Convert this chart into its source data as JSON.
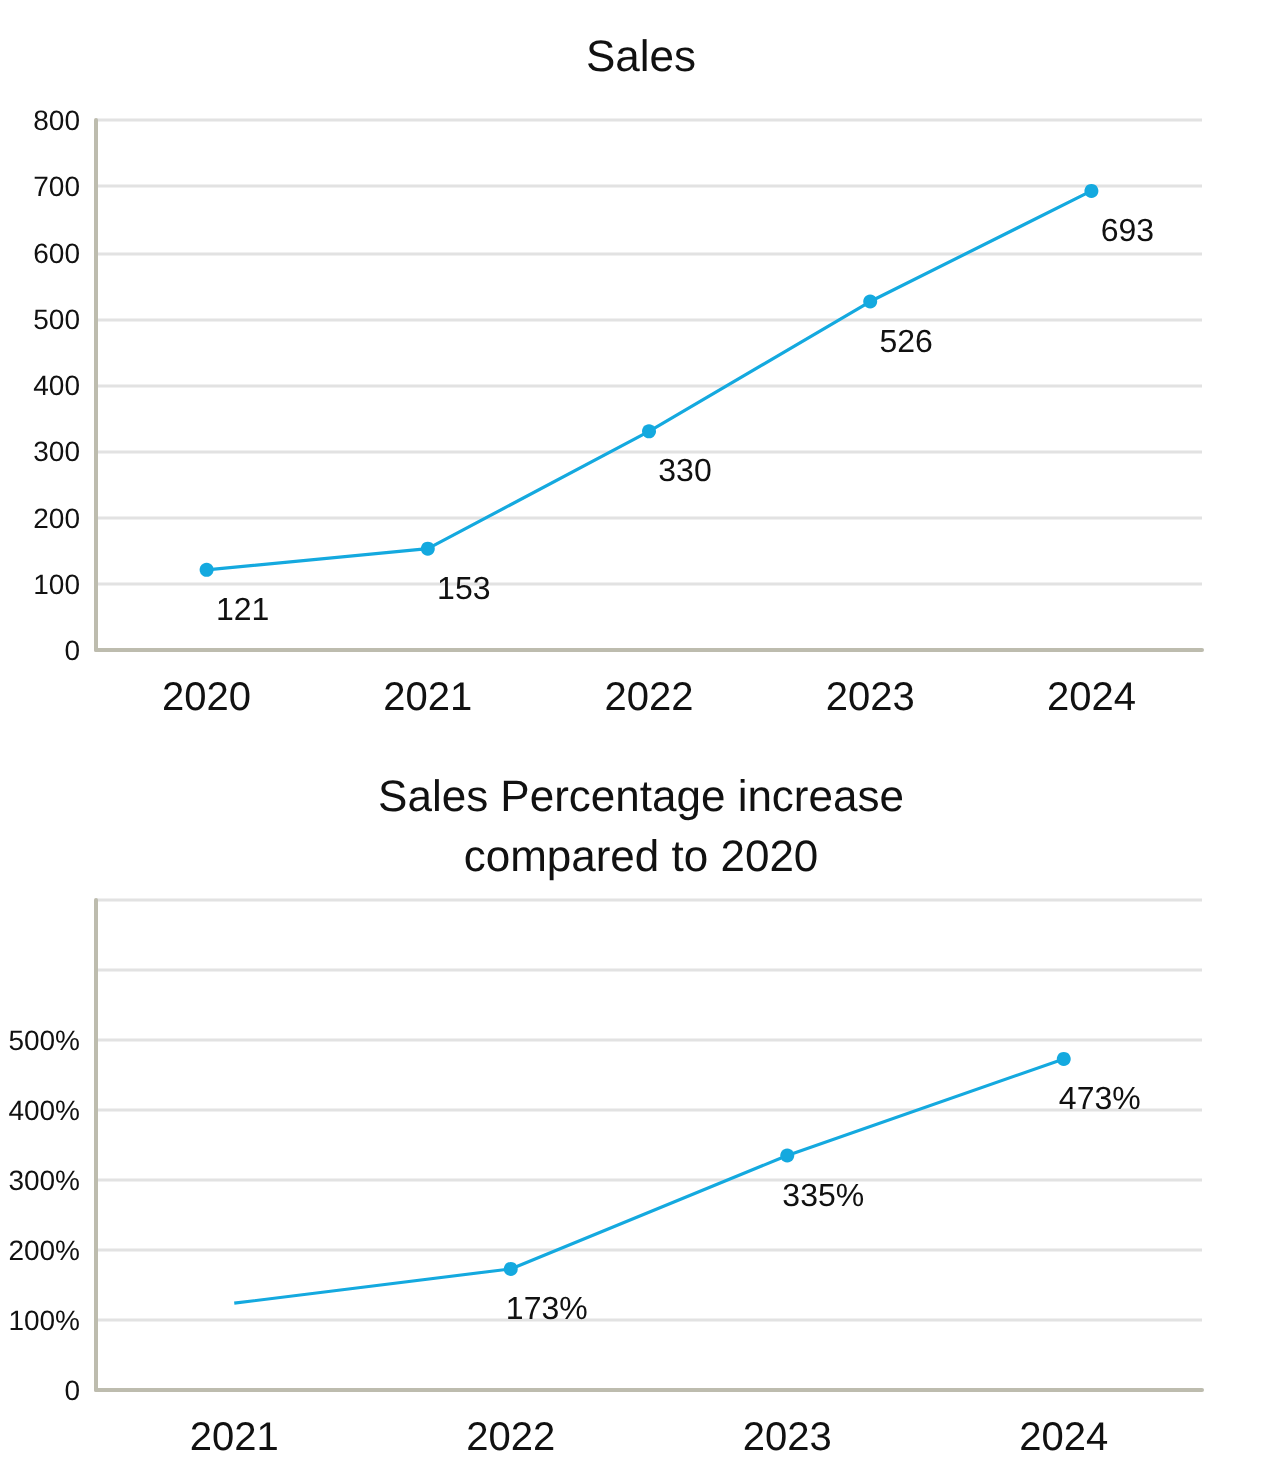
{
  "chart_data": [
    {
      "type": "line",
      "title": "Sales",
      "categories": [
        "2020",
        "2021",
        "2022",
        "2023",
        "2024"
      ],
      "series": [
        {
          "color": "#14a9df",
          "values": [
            121,
            153,
            330,
            526,
            693
          ]
        }
      ],
      "ylim": [
        0,
        800
      ],
      "yticks": [
        0,
        100,
        200,
        300,
        400,
        500,
        600,
        700,
        800
      ],
      "grid": "y",
      "marker": "circle",
      "data_labels": true
    },
    {
      "type": "line",
      "title": "Sales Percentage increase compared to 2020",
      "categories": [
        "2021",
        "2022",
        "2023",
        "2024"
      ],
      "series": [
        {
          "color": "#14a9df",
          "values": [
            124,
            173,
            335,
            473
          ],
          "value_labels": [
            null,
            "173%",
            "335%",
            "473%"
          ]
        }
      ],
      "ylim": [
        0,
        700
      ],
      "yticks": [
        0,
        {
          "value": 100,
          "label": "100%"
        },
        {
          "value": 200,
          "label": "200%"
        },
        {
          "value": 300,
          "label": "300%"
        },
        {
          "value": 400,
          "label": "400%"
        },
        {
          "value": 500,
          "label": "500%"
        },
        {
          "value": 600,
          "label": null
        },
        {
          "value": 700,
          "label": null
        }
      ],
      "grid": "y",
      "marker": "circle"
    }
  ]
}
